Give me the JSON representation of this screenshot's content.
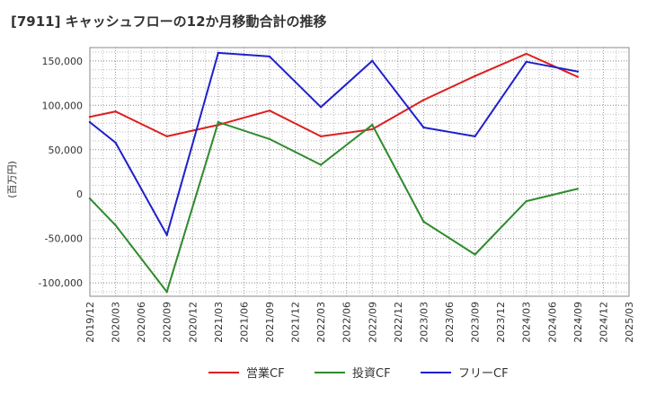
{
  "chart_data": {
    "type": "line",
    "title": "[7911]  キャッシュフローの12か月移動合計の推移",
    "ylabel": "(百万円)",
    "xlabel": "",
    "ylim": [
      -115000,
      165000
    ],
    "yticks": [
      -100000,
      -50000,
      0,
      50000,
      100000,
      150000
    ],
    "ytick_labels": [
      "-100,000",
      "-50,000",
      "0",
      "50,000",
      "100,000",
      "150,000"
    ],
    "categories": [
      "2019/12",
      "2020/03",
      "2020/06",
      "2020/09",
      "2020/12",
      "2021/03",
      "2021/06",
      "2021/09",
      "2021/12",
      "2022/03",
      "2022/06",
      "2022/09",
      "2022/12",
      "2023/03",
      "2023/06",
      "2023/09",
      "2023/12",
      "2024/03",
      "2024/06",
      "2024/09",
      "2024/12",
      "2025/03"
    ],
    "grid": true,
    "legend_position": "bottom",
    "series": [
      {
        "name": "営業CF",
        "color": "#dd1f1f",
        "values": [
          87000,
          93000,
          null,
          65000,
          null,
          78000,
          null,
          94000,
          null,
          65000,
          null,
          73000,
          null,
          106000,
          null,
          133000,
          null,
          158000,
          null,
          132000,
          null,
          null
        ]
      },
      {
        "name": "投資CF",
        "color": "#2e8b2e",
        "values": [
          -5000,
          -35000,
          null,
          -110000,
          null,
          81000,
          null,
          62000,
          null,
          33000,
          null,
          78000,
          null,
          -31000,
          null,
          -68000,
          null,
          -8000,
          null,
          6000,
          null,
          null
        ]
      },
      {
        "name": "フリーCF",
        "color": "#1f1fcc",
        "values": [
          81000,
          58000,
          null,
          -46000,
          null,
          159000,
          null,
          155000,
          null,
          98000,
          null,
          150000,
          null,
          75000,
          null,
          65000,
          null,
          149000,
          null,
          138000,
          null,
          null
        ]
      }
    ]
  }
}
